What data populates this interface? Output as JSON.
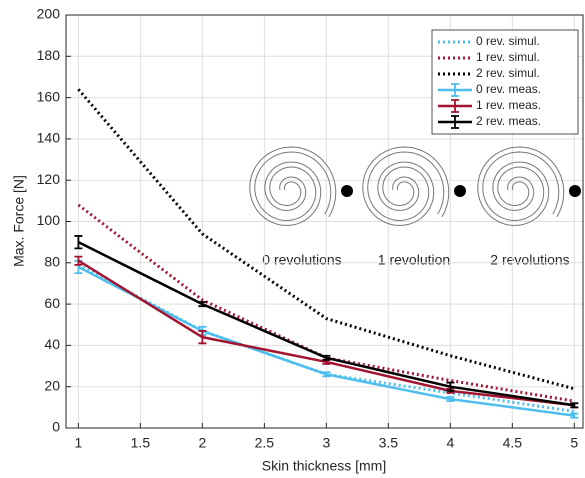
{
  "chart_data": {
    "type": "line",
    "xlabel": "Skin thickness [mm]",
    "ylabel": "Max. Force [N]",
    "x": [
      1,
      2,
      3,
      4,
      5
    ],
    "series": [
      {
        "name": "0 rev. simul.",
        "color": "#4dbeee",
        "style": "dotted",
        "values": [
          79,
          47,
          26,
          17,
          8
        ]
      },
      {
        "name": "1 rev. simul.",
        "color": "#a2142f",
        "style": "dotted",
        "values": [
          108,
          62,
          34,
          23,
          13
        ]
      },
      {
        "name": "2 rev. simul.",
        "color": "#000000",
        "style": "dotted",
        "values": [
          164,
          94,
          53,
          35,
          19
        ]
      },
      {
        "name": "0 rev. meas.",
        "color": "#4dbeee",
        "style": "solid",
        "values": [
          78,
          47,
          26,
          14,
          6
        ],
        "errors": [
          3,
          2,
          1,
          1,
          1
        ]
      },
      {
        "name": "1 rev. meas.",
        "color": "#a2142f",
        "style": "solid",
        "values": [
          81,
          44,
          32,
          18,
          11
        ],
        "errors": [
          2,
          3,
          1,
          1,
          1
        ]
      },
      {
        "name": "2 rev. meas.",
        "color": "#000000",
        "style": "solid",
        "values": [
          90,
          60,
          34,
          20,
          11
        ],
        "errors": [
          3,
          1,
          1,
          2,
          1
        ]
      }
    ],
    "annotations": [
      "0 revolutions",
      "1 revolution",
      "2 revolutions"
    ],
    "xlim": [
      0.9,
      5.07
    ],
    "ylim": [
      0,
      200
    ],
    "xticks": [
      1,
      1.5,
      2,
      2.5,
      3,
      3.5,
      4,
      4.5,
      5
    ],
    "yticks": [
      0,
      20,
      40,
      60,
      80,
      100,
      120,
      140,
      160,
      180,
      200
    ],
    "grid": true,
    "legend": "upper right"
  }
}
